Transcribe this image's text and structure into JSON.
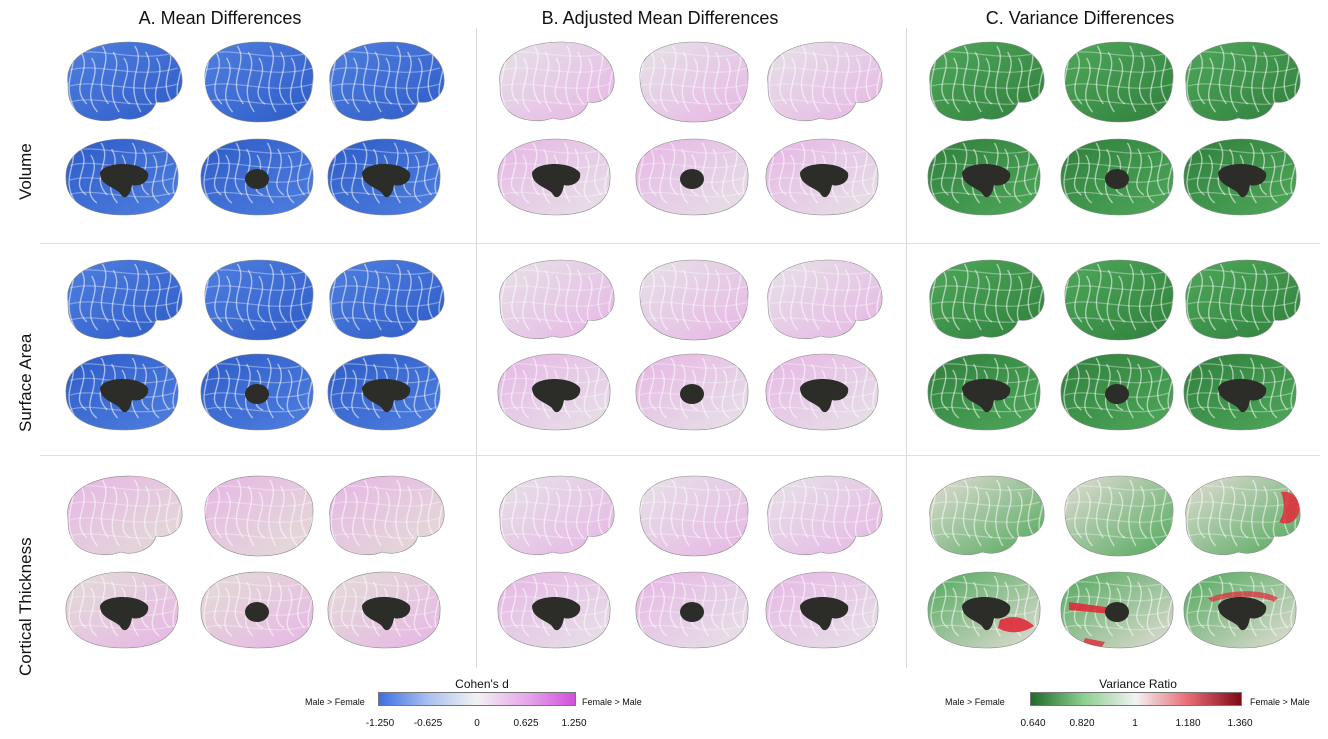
{
  "columns": [
    {
      "title": "A. Mean Differences",
      "palette": "blue"
    },
    {
      "title": "B. Adjusted Mean Differences",
      "palette": "neutral"
    },
    {
      "title": "C. Variance Differences",
      "palette": "green"
    }
  ],
  "rows": [
    {
      "label": "Volume"
    },
    {
      "label": "Surface Area"
    },
    {
      "label": "Cortical Thickness"
    }
  ],
  "legends": {
    "cohens_d": {
      "title": "Cohen's d",
      "left_label": "Male > Female",
      "right_label": "Female > Male",
      "ticks": [
        "-1.250",
        "-0.625",
        "0",
        "0.625",
        "1.250"
      ],
      "colors": [
        "#3f6fe0",
        "#a9bff0",
        "#f2f2f2",
        "#e6a8ea",
        "#d14fd9"
      ]
    },
    "variance_ratio": {
      "title": "Variance Ratio",
      "left_label": "Male > Female",
      "right_label": "Female > Male",
      "ticks": [
        "0.640",
        "0.820",
        "1",
        "1.180",
        "1.360"
      ],
      "colors": [
        "#1f6b2a",
        "#8ccf8f",
        "#f2f2f2",
        "#e86a75",
        "#7e0a18"
      ]
    }
  },
  "palettes": {
    "blue": "#4f7fe0",
    "blue_dark": "#2e5cc8",
    "neutral": "#e6e2e6",
    "pink": "#e7b6e6",
    "green": "#4fa85a",
    "green_dark": "#2f7f3c",
    "thick_neutral": "#e3ddd6",
    "red": "#e02a3a",
    "hole": "#2c2c28"
  }
}
